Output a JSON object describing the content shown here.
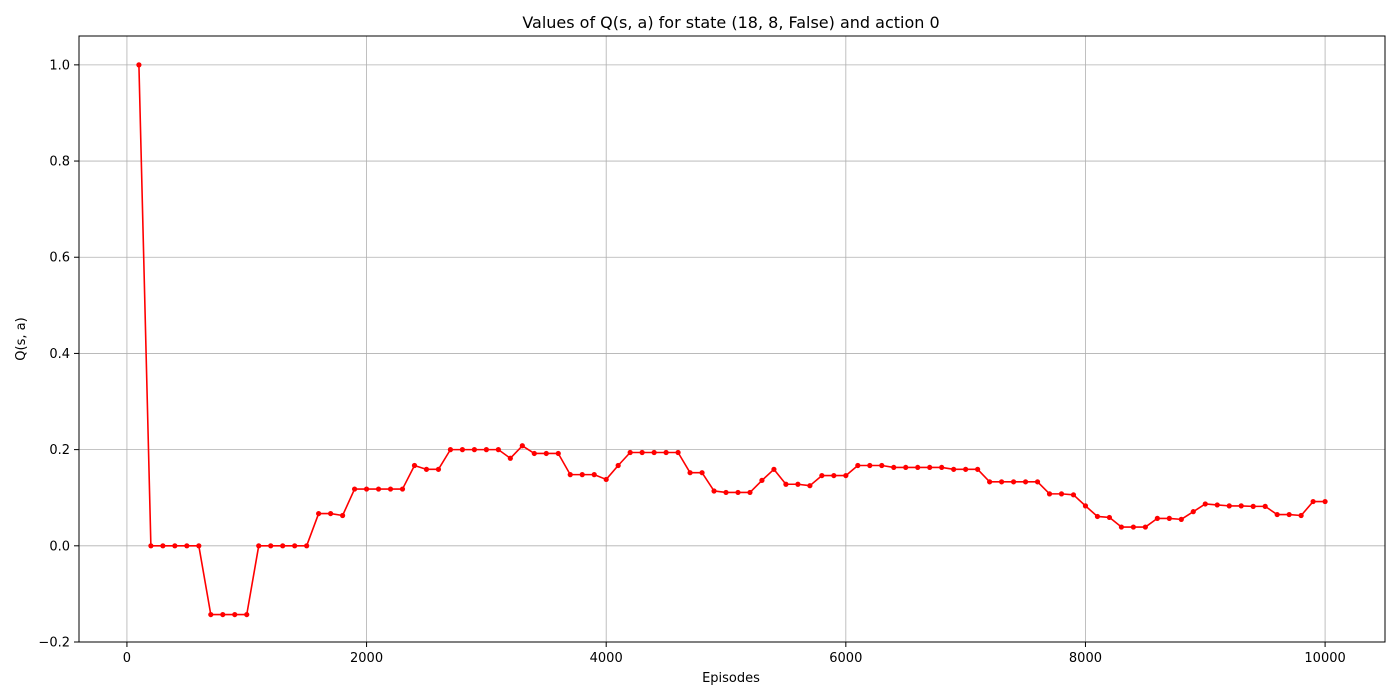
{
  "chart_data": {
    "type": "line",
    "title": "Values of Q(s, a) for state (18, 8, False) and action 0",
    "xlabel": "Episodes",
    "ylabel": "Q(s, a)",
    "xlim": [
      -400,
      10500
    ],
    "ylim": [
      -0.2,
      1.06
    ],
    "xticks": [
      0,
      2000,
      4000,
      6000,
      8000,
      10000
    ],
    "yticks": [
      -0.2,
      0.0,
      0.2,
      0.4,
      0.6,
      0.8,
      1.0
    ],
    "xtick_labels": [
      "0",
      "2000",
      "4000",
      "6000",
      "8000",
      "10000"
    ],
    "ytick_labels": [
      "−0.2",
      "0.0",
      "0.2",
      "0.4",
      "0.6",
      "0.8",
      "1.0"
    ],
    "grid": true,
    "line_color": "#ff0000",
    "marker": "circle",
    "series": [
      {
        "x": [
          100,
          200,
          300,
          400,
          500,
          600,
          700,
          800,
          900,
          1000,
          1100,
          1200,
          1300,
          1400,
          1500,
          1600,
          1700,
          1800,
          1900,
          2000,
          2100,
          2200,
          2300,
          2400,
          2500,
          2600,
          2700,
          2800,
          2900,
          3000,
          3100,
          3200,
          3300,
          3400,
          3500,
          3600,
          3700,
          3800,
          3900,
          4000,
          4100,
          4200,
          4300,
          4400,
          4500,
          4600,
          4700,
          4800,
          4900,
          5000,
          5100,
          5200,
          5300,
          5400,
          5500,
          5600,
          5700,
          5800,
          5900,
          6000,
          6100,
          6200,
          6300,
          6400,
          6500,
          6600,
          6700,
          6800,
          6900,
          7000,
          7100,
          7200,
          7300,
          7400,
          7500,
          7600,
          7700,
          7800,
          7900,
          8000,
          8100,
          8200,
          8300,
          8400,
          8500,
          8600,
          8700,
          8800,
          8900,
          9000,
          9100,
          9200,
          9300,
          9400,
          9500,
          9600,
          9700,
          9800,
          9900,
          10000
        ],
        "y": [
          1.0,
          0.0,
          0.0,
          0.0,
          0.0,
          0.0,
          -0.143,
          -0.143,
          -0.143,
          -0.143,
          0.0,
          0.0,
          0.0,
          0.0,
          0.0,
          0.067,
          0.067,
          0.063,
          0.118,
          0.118,
          0.118,
          0.118,
          0.118,
          0.167,
          0.159,
          0.159,
          0.2,
          0.2,
          0.2,
          0.2,
          0.2,
          0.182,
          0.208,
          0.192,
          0.192,
          0.192,
          0.148,
          0.148,
          0.148,
          0.138,
          0.167,
          0.194,
          0.194,
          0.194,
          0.194,
          0.194,
          0.152,
          0.152,
          0.114,
          0.111,
          0.111,
          0.111,
          0.136,
          0.159,
          0.128,
          0.128,
          0.125,
          0.146,
          0.146,
          0.146,
          0.167,
          0.167,
          0.167,
          0.163,
          0.163,
          0.163,
          0.163,
          0.163,
          0.159,
          0.159,
          0.159,
          0.133,
          0.133,
          0.133,
          0.133,
          0.133,
          0.108,
          0.108,
          0.106,
          0.083,
          0.061,
          0.059,
          0.039,
          0.039,
          0.039,
          0.057,
          0.057,
          0.055,
          0.071,
          0.087,
          0.085,
          0.083,
          0.083,
          0.082,
          0.082,
          0.065,
          0.065,
          0.063,
          0.092,
          0.092
        ]
      }
    ]
  }
}
